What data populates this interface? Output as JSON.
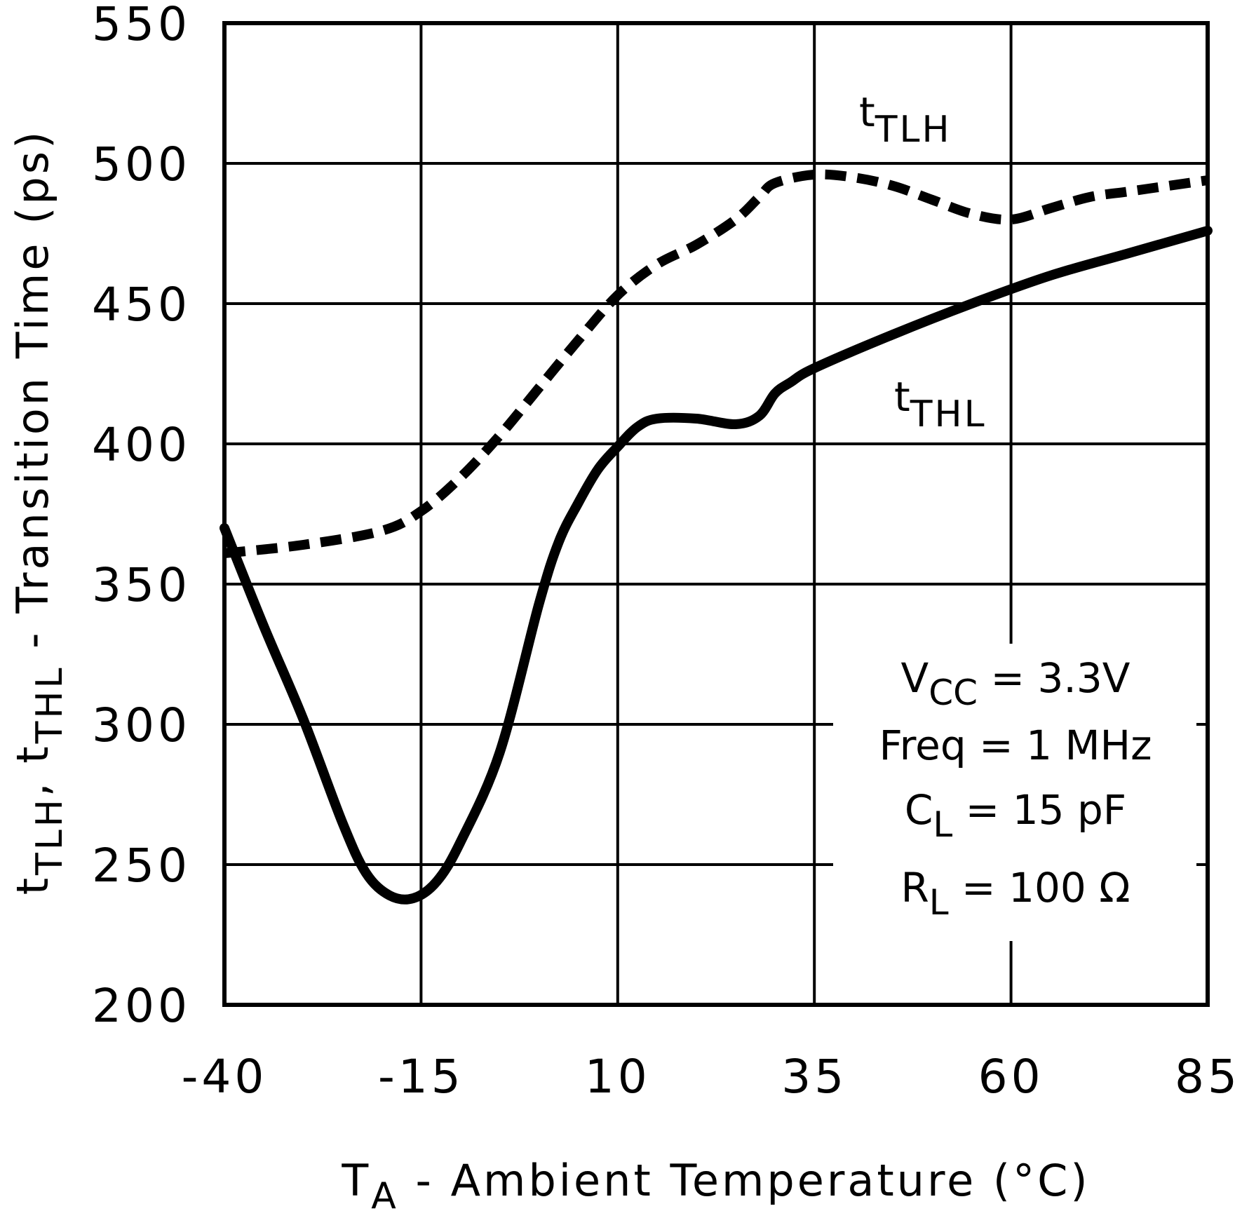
{
  "chart_data": {
    "type": "line",
    "title": "",
    "x_axis": {
      "label_main": "T",
      "label_sub": "A",
      "label_rest": " - Ambient Temperature (°C)",
      "min": -40,
      "max": 85,
      "ticks": [
        -40,
        -15,
        10,
        35,
        60,
        85
      ],
      "tick_labels": [
        "-40",
        "-15",
        "10",
        "35",
        "60",
        "85"
      ]
    },
    "y_axis": {
      "label_parts": [
        {
          "text": "t",
          "sub": false
        },
        {
          "text": "TLH",
          "sub": true
        },
        {
          "text": ", t",
          "sub": false
        },
        {
          "text": "THL",
          "sub": true
        },
        {
          "text": " - Transition Time (ps)",
          "sub": false
        }
      ],
      "min": 200,
      "max": 550,
      "ticks": [
        200,
        250,
        300,
        350,
        400,
        450,
        500,
        550
      ],
      "tick_labels": [
        "200",
        "250",
        "300",
        "350",
        "400",
        "450",
        "500",
        "550"
      ]
    },
    "grid": true,
    "series": [
      {
        "name": "tTLH",
        "label_main": "t",
        "label_sub": "TLH",
        "style": "dashed",
        "x": [
          -40,
          -30,
          -20,
          -15,
          -10,
          -5,
          0,
          5,
          10,
          15,
          20,
          25,
          28,
          30,
          35,
          40,
          45,
          50,
          55,
          60,
          65,
          70,
          75,
          80,
          85
        ],
        "y": [
          361,
          364,
          369,
          376,
          388,
          403,
          420,
          437,
          453,
          464,
          471,
          480,
          488,
          493,
          496,
          495,
          492,
          487,
          482,
          480,
          484,
          488,
          490,
          492,
          494
        ]
      },
      {
        "name": "tTHL",
        "label_main": "t",
        "label_sub": "THL",
        "style": "solid",
        "x": [
          -40,
          -35,
          -30,
          -25,
          -22,
          -19,
          -16,
          -13,
          -10,
          -5,
          0,
          2.5,
          5,
          7.5,
          10,
          12.5,
          15,
          20,
          25,
          28,
          30,
          32,
          35,
          45,
          55,
          65,
          75,
          85
        ],
        "y": [
          370,
          335,
          302,
          265,
          247,
          239,
          238,
          244,
          258,
          290,
          343,
          365,
          379,
          391,
          399,
          406,
          409,
          409,
          407,
          410,
          418,
          422,
          427,
          439,
          450,
          460,
          468,
          476
        ]
      }
    ],
    "annotation": {
      "lines": [
        {
          "main": "V",
          "sub": "CC",
          "rest": " = 3.3V"
        },
        {
          "main": "Freq = 1 MHz",
          "sub": "",
          "rest": ""
        },
        {
          "main": "C",
          "sub": "L",
          "rest": " = 15 pF"
        },
        {
          "main": "R",
          "sub": "L",
          "rest": " = 100 Ω"
        }
      ]
    }
  }
}
